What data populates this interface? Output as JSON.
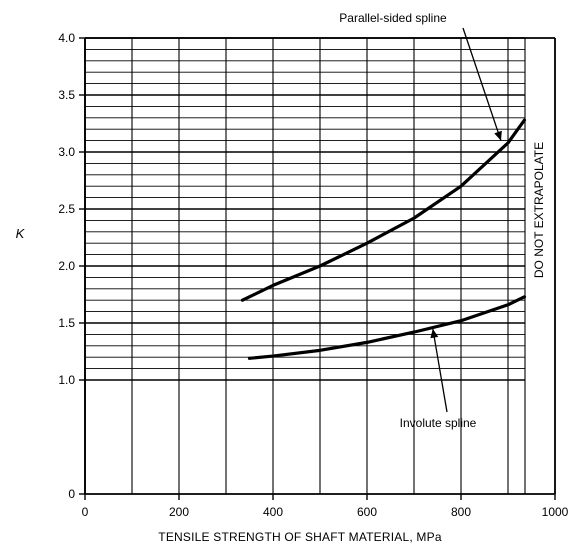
{
  "chart_data": {
    "type": "line",
    "title": "",
    "xlabel": "TENSILE STRENGTH OF SHAFT MATERIAL, MPa",
    "ylabel": "K",
    "xlim": [
      0,
      1000
    ],
    "ylim": [
      0,
      4.0
    ],
    "x_ticks": [
      0,
      200,
      400,
      600,
      800,
      1000
    ],
    "x_tick_labels": [
      "0",
      "200",
      "400",
      "600",
      "800",
      "1000"
    ],
    "y_ticks": [
      0,
      1.0,
      1.5,
      2.0,
      2.5,
      3.0,
      3.5,
      4.0
    ],
    "y_tick_labels": [
      "0",
      "1.0",
      "1.5",
      "2.0",
      "2.5",
      "3.0",
      "3.5",
      "4.0"
    ],
    "grid": true,
    "series": [
      {
        "name": "Parallel-sided spline",
        "x": [
          335,
          400,
          500,
          600,
          700,
          800,
          900,
          935
        ],
        "y": [
          1.7,
          1.83,
          2.0,
          2.2,
          2.42,
          2.7,
          3.08,
          3.28
        ]
      },
      {
        "name": "Involute spline",
        "x": [
          350,
          400,
          500,
          600,
          700,
          800,
          900,
          935
        ],
        "y": [
          1.19,
          1.21,
          1.26,
          1.33,
          1.42,
          1.52,
          1.66,
          1.73
        ]
      }
    ],
    "annotations": [
      {
        "text": "Parallel-sided spline",
        "points_to_x": 885,
        "points_to_y": 3.1
      },
      {
        "text": "Involute spline",
        "points_to_x": 740,
        "points_to_y": 1.45
      }
    ],
    "side_note": "DO NOT EXTRAPOLATE"
  }
}
